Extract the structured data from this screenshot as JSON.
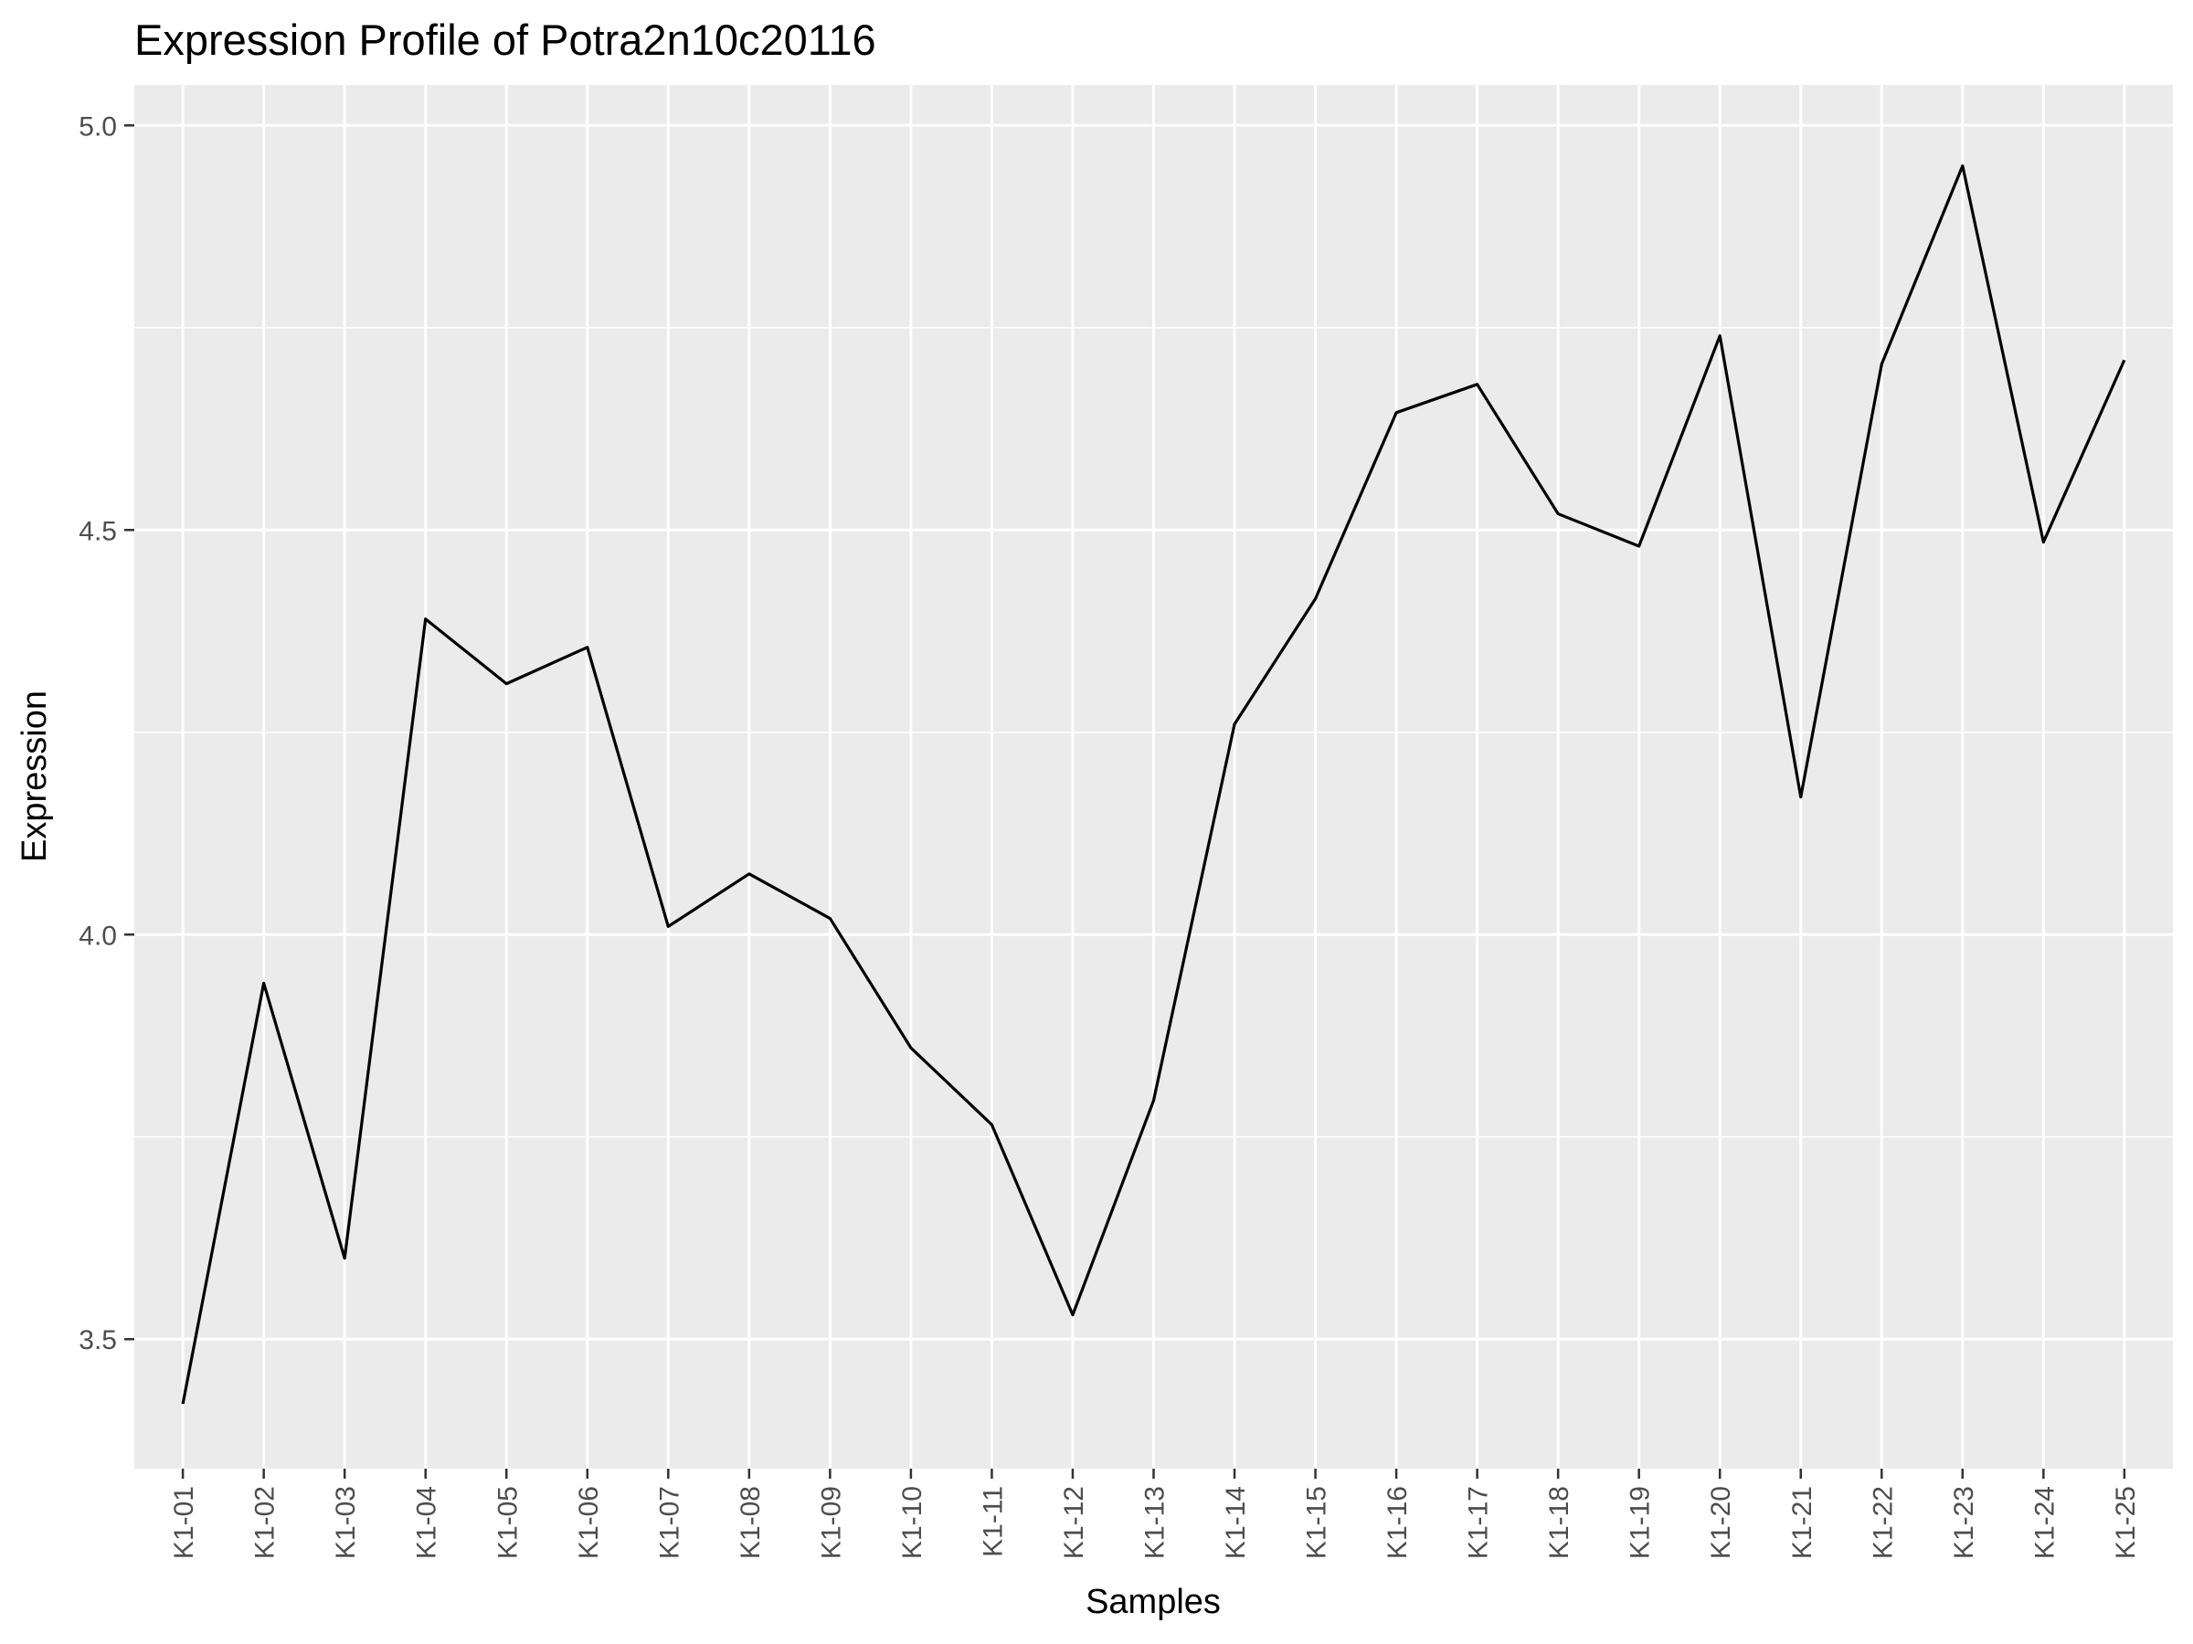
{
  "chart_data": {
    "type": "line",
    "title": "Expression Profile of Potra2n10c20116",
    "xlabel": "Samples",
    "ylabel": "Expression",
    "categories": [
      "K1-01",
      "K1-02",
      "K1-03",
      "K1-04",
      "K1-05",
      "K1-06",
      "K1-07",
      "K1-08",
      "K1-09",
      "K1-10",
      "K1-11",
      "K1-12",
      "K1-13",
      "K1-14",
      "K1-15",
      "K1-16",
      "K1-17",
      "K1-18",
      "K1-19",
      "K1-20",
      "K1-21",
      "K1-22",
      "K1-23",
      "K1-24",
      "K1-25"
    ],
    "values": [
      3.42,
      3.94,
      3.6,
      4.39,
      4.31,
      4.355,
      4.01,
      4.075,
      4.02,
      3.86,
      3.765,
      3.53,
      3.795,
      4.26,
      4.415,
      4.645,
      4.68,
      4.52,
      4.48,
      4.74,
      4.17,
      4.705,
      4.95,
      4.485,
      4.71
    ],
    "ylim": [
      3.34,
      5.05
    ],
    "yticks": [
      3.5,
      4.0,
      4.5,
      5.0
    ],
    "ytick_labels": [
      "3.5",
      "4.0",
      "4.5",
      "5.0"
    ],
    "grid": true,
    "legend": false,
    "colors": {
      "panel": "#ebebeb",
      "grid": "#ffffff",
      "line": "#000000",
      "tick": "#333333"
    }
  }
}
